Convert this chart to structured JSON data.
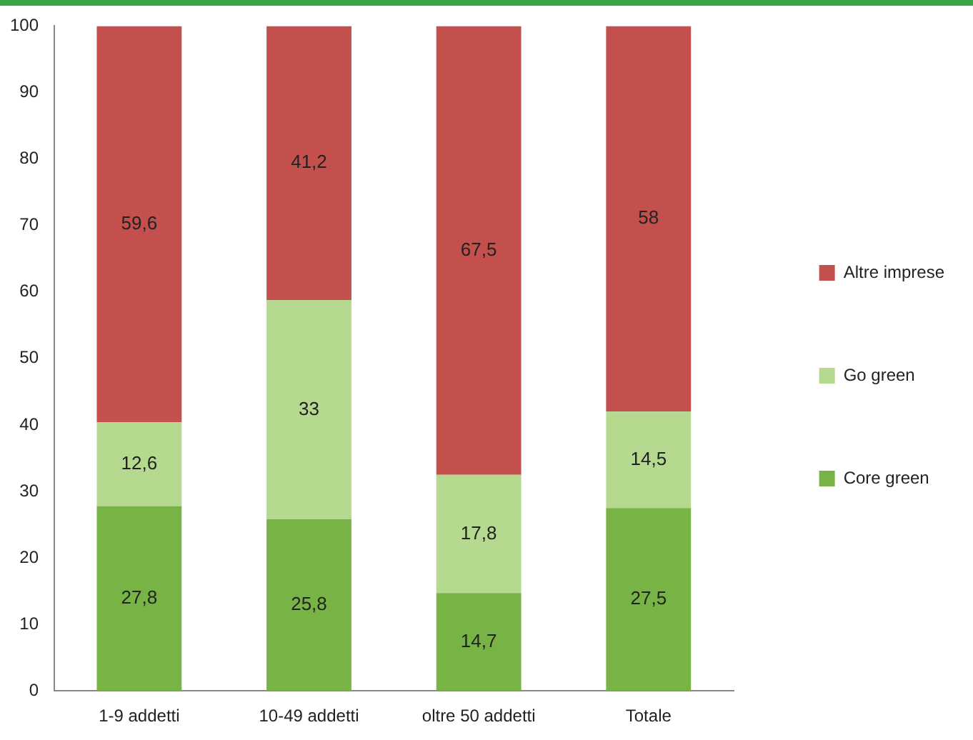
{
  "chart_data": {
    "type": "bar",
    "stacked": true,
    "categories": [
      "1-9 addetti",
      "10-49 addetti",
      "oltre 50 addetti",
      "Totale"
    ],
    "series": [
      {
        "name": "Core green",
        "color": "#78b445",
        "values": [
          27.8,
          25.8,
          14.7,
          27.5
        ],
        "value_labels": [
          "27,8",
          "25,8",
          "14,7",
          "27,5"
        ]
      },
      {
        "name": "Go green",
        "color": "#b5d98f",
        "values": [
          12.6,
          33,
          17.8,
          14.5
        ],
        "value_labels": [
          "12,6",
          "33",
          "17,8",
          "14,5"
        ]
      },
      {
        "name": "Altre imprese",
        "color": "#c4504e",
        "values": [
          59.6,
          41.2,
          67.5,
          58
        ],
        "value_labels": [
          "59,6",
          "41,2",
          "67,5",
          "58"
        ]
      }
    ],
    "ylim": [
      0,
      100
    ],
    "yticks": [
      0,
      10,
      20,
      30,
      40,
      50,
      60,
      70,
      80,
      90,
      100
    ],
    "grid": false,
    "legend": "right"
  }
}
